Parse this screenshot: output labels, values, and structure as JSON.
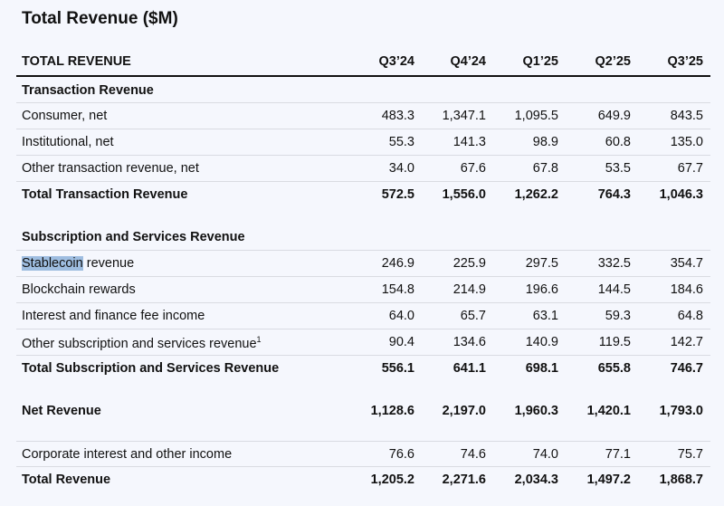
{
  "title": "Total Revenue ($M)",
  "header": {
    "label": "TOTAL REVENUE",
    "columns": [
      "Q3’24",
      "Q4’24",
      "Q1’25",
      "Q2’25",
      "Q3’25"
    ]
  },
  "rows": [
    {
      "label": "Transaction Revenue",
      "type": "section",
      "values": []
    },
    {
      "label": "Consumer, net",
      "values": [
        "483.3",
        "1,347.1",
        "1,095.5",
        "649.9",
        "843.5"
      ]
    },
    {
      "label": "Institutional, net",
      "values": [
        "55.3",
        "141.3",
        "98.9",
        "60.8",
        "135.0"
      ]
    },
    {
      "label": "Other transaction revenue, net",
      "values": [
        "34.0",
        "67.6",
        "67.8",
        "53.5",
        "67.7"
      ]
    },
    {
      "label": "Total Transaction Revenue",
      "type": "total",
      "values": [
        "572.5",
        "1,556.0",
        "1,262.2",
        "764.3",
        "1,046.3"
      ]
    },
    {
      "label": "Subscription and Services Revenue",
      "type": "section",
      "values": []
    },
    {
      "label": "Stablecoin revenue",
      "selected_text": "Stablecoin",
      "rest_text": " revenue",
      "values": [
        "246.9",
        "225.9",
        "297.5",
        "332.5",
        "354.7"
      ]
    },
    {
      "label": "Blockchain rewards",
      "values": [
        "154.8",
        "214.9",
        "196.6",
        "144.5",
        "184.6"
      ]
    },
    {
      "label": "Interest and finance fee income",
      "values": [
        "64.0",
        "65.7",
        "63.1",
        "59.3",
        "64.8"
      ]
    },
    {
      "label": "Other subscription and services revenue",
      "footnote": "1",
      "values": [
        "90.4",
        "134.6",
        "140.9",
        "119.5",
        "142.7"
      ]
    },
    {
      "label": "Total Subscription and Services Revenue",
      "type": "total",
      "values": [
        "556.1",
        "641.1",
        "698.1",
        "655.8",
        "746.7"
      ]
    },
    {
      "label": "Net Revenue",
      "type": "total",
      "values": [
        "1,128.6",
        "2,197.0",
        "1,960.3",
        "1,420.1",
        "1,793.0"
      ]
    },
    {
      "label": "Corporate interest and other income",
      "values": [
        "76.6",
        "74.6",
        "74.0",
        "77.1",
        "75.7"
      ]
    },
    {
      "label": "Total Revenue",
      "type": "total",
      "values": [
        "1,205.2",
        "2,271.6",
        "2,034.3",
        "1,497.2",
        "1,868.7"
      ]
    }
  ],
  "colors": {
    "background": "#f5f7fd",
    "selection": "#9ebde0"
  }
}
